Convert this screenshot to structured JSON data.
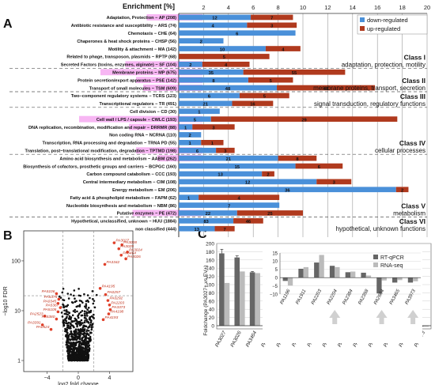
{
  "figure": {
    "panel_labels": [
      "A",
      "B",
      "C"
    ]
  },
  "chart_data": [
    {
      "panel": "A",
      "type": "bar",
      "orientation": "horizontal",
      "stacked": true,
      "title": "",
      "xlabel": "Enrichment [%]",
      "xlim": [
        0,
        20
      ],
      "xticks": [
        2,
        4,
        6,
        8,
        10,
        12,
        14,
        16,
        18,
        20
      ],
      "grid": true,
      "legend": {
        "placement": "top-right",
        "entries": [
          {
            "name": "down-regulated",
            "color": "#4a90d9"
          },
          {
            "name": "up-regulated",
            "color": "#b03a1e"
          }
        ]
      },
      "colors": {
        "down": "#4a90d9",
        "up": "#b03a1e",
        "highlight": "#f7b6f3"
      },
      "categories": [
        {
          "label": "Adaptation, Protection − AP (208)",
          "down": 5.8,
          "up": 3.4,
          "down_n": "12",
          "up_n": "7",
          "hl": 0.9
        },
        {
          "label": "Antibiotic resistance and susceptibility − ARS (74)",
          "down": 5.5,
          "up": 4.0,
          "down_n": "4",
          "up_n": "3",
          "hl": 0
        },
        {
          "label": "Chemotaxis − CHE (64)",
          "down": 9.4,
          "up": 0,
          "down_n": "6",
          "up_n": "",
          "hl": 0
        },
        {
          "label": "Chaperones & heat shock proteins − CHSP (56)",
          "down": 3.6,
          "up": 0,
          "down_n": "2",
          "up_n": "",
          "hl": 0
        },
        {
          "label": "Motility & attachment − MA (142)",
          "down": 7.0,
          "up": 2.8,
          "down_n": "10",
          "up_n": "4",
          "hl": 0
        },
        {
          "label": "Related to phage, transposon, plasmids − RPTP (68)",
          "down": 0,
          "up": 7.3,
          "down_n": "",
          "up_n": "5",
          "hl": 0
        },
        {
          "label": "Secreted Factors (toxins, enzymes, alginate) − SF (104)",
          "down": 1.9,
          "up": 3.8,
          "down_n": "2",
          "up_n": "4",
          "hl": 1.5
        },
        {
          "label": "Membrane proteins − MP (675)",
          "down": 5.2,
          "up": 8.2,
          "down_n": "35",
          "up_n": "55",
          "hl": 2.2
        },
        {
          "label": "Protein secretion/export apparatus − PSE (142)",
          "down": 5.6,
          "up": 3.6,
          "down_n": "8",
          "up_n": "5",
          "hl": 1.2
        },
        {
          "label": "Transport of small molecules − TSM (609)",
          "down": 7.9,
          "up": 7.9,
          "down_n": "48",
          "up_n": "48",
          "hl": 1.0
        },
        {
          "label": "Two−component regulatory systems − TCRS (123)",
          "down": 4.9,
          "up": 4.0,
          "down_n": "6",
          "up_n": "5",
          "hl": 0
        },
        {
          "label": "Transcriptional regulators − TR (491)",
          "down": 4.3,
          "up": 3.3,
          "down_n": "21",
          "up_n": "16",
          "hl": 0
        },
        {
          "label": "Cell division − CD (30)",
          "down": 3.3,
          "up": 0,
          "down_n": "1",
          "up_n": "",
          "hl": 0
        },
        {
          "label": "Cell wall / LPS / capsule − CWLC (193)",
          "down": 2.6,
          "up": 15.0,
          "down_n": "5",
          "up_n": "29",
          "hl": 2.8
        },
        {
          "label": "DNA replication, recombination, modification and repair − DRRMR (88)",
          "down": 1.1,
          "up": 3.4,
          "down_n": "1",
          "up_n": "3",
          "hl": 1.4
        },
        {
          "label": "Non coding RNA − NCRNA (110)",
          "down": 1.8,
          "up": 0,
          "down_n": "2",
          "up_n": "",
          "hl": 0
        },
        {
          "label": "Transcription, RNA processing and degradation − TRNA PD (55)",
          "down": 1.8,
          "up": 1.8,
          "down_n": "1",
          "up_n": "1",
          "hl": 0
        },
        {
          "label": "Translation, post−translational modification, degradation − TPTMD (198)",
          "down": 3.0,
          "up": 1.5,
          "down_n": "6",
          "up_n": "3",
          "hl": 1.2
        },
        {
          "label": "Amino acid biosynthesis and metabolism − AABM (262)",
          "down": 8.0,
          "up": 3.1,
          "down_n": "21",
          "up_n": "8",
          "hl": 0.6
        },
        {
          "label": "Biosynthesis of cofactors, prosthetic groups and carriers − BCPGC (160)",
          "down": 9.4,
          "up": 3.8,
          "down_n": "15",
          "up_n": "6",
          "hl": 0
        },
        {
          "label": "Carbon compound catabolism − CCC (193)",
          "down": 6.7,
          "up": 1.0,
          "down_n": "13",
          "up_n": "2",
          "hl": 0
        },
        {
          "label": "Central intermediary metabolism − CIM (108)",
          "down": 11.1,
          "up": 2.8,
          "down_n": "12",
          "up_n": "3",
          "hl": 0
        },
        {
          "label": "Energy metabolism − EM (206)",
          "down": 17.5,
          "up": 1.0,
          "down_n": "36",
          "up_n": "2",
          "hl": 0
        },
        {
          "label": "Fatty acid & phospholipid metabolism − FAPM (62)",
          "down": 1.6,
          "up": 6.5,
          "down_n": "1",
          "up_n": "4",
          "hl": 0
        },
        {
          "label": "Nucleotide biosynthesis and metabolism − NBM (86)",
          "down": 8.1,
          "up": 0,
          "down_n": "7",
          "up_n": "",
          "hl": 0
        },
        {
          "label": "Putative enzymes − PE (472)",
          "down": 4.7,
          "up": 5.3,
          "down_n": "22",
          "up_n": "25",
          "hl": 1.3
        },
        {
          "label": "Hypothetical, unclassified, unknown − HUU (1884)",
          "down": 4.4,
          "up": 2.4,
          "down_n": "83",
          "up_n": "46",
          "hl": 0
        },
        {
          "label": "non classified (444)",
          "down": 2.9,
          "up": 1.6,
          "down_n": "13",
          "up_n": "7",
          "hl": 0
        }
      ],
      "classes": [
        {
          "name": "Class I",
          "desc": "adaptation, protection, motility"
        },
        {
          "name": "Class II",
          "desc": "membrane proteins, transport, secretion"
        },
        {
          "name": "Class III",
          "desc": "signal transduction, regulatory functions"
        },
        {
          "name": "Class IV",
          "desc": "cellular processes"
        },
        {
          "name": "Class V",
          "desc": "metabolism"
        },
        {
          "name": "Class VI",
          "desc": "hypothetical, unknown functions"
        }
      ]
    },
    {
      "panel": "B",
      "type": "scatter",
      "title": "",
      "xlabel": "log2 fold change",
      "ylabel": "−log10 FDR",
      "xlim": [
        -7,
        7
      ],
      "ylim_log": [
        0.6,
        400
      ],
      "xticks": [
        -4,
        0,
        4
      ],
      "yticks": [
        1,
        10,
        100
      ],
      "thresholds": {
        "x": [
          -2,
          2
        ],
        "y": 1.3
      },
      "colors": {
        "point": "#111111",
        "highlight": "#e0402a"
      },
      "labeled_points": [
        {
          "label": "PA3027",
          "x": 4.6,
          "y": 230
        },
        {
          "label": "PA3028",
          "x": 5.6,
          "y": 210
        },
        {
          "label": "PA3029",
          "x": 5.2,
          "y": 175
        },
        {
          "label": "PA3024",
          "x": 6.3,
          "y": 150
        },
        {
          "label": "PA3464",
          "x": 5.5,
          "y": 130
        },
        {
          "label": "PA3026",
          "x": 6.1,
          "y": 110
        },
        {
          "label": "PA3342",
          "x": 3.4,
          "y": 85
        },
        {
          "label": "PA4195",
          "x": 2.8,
          "y": 28
        },
        {
          "label": "PA0257",
          "x": 3.5,
          "y": 21
        },
        {
          "label": "PA0292",
          "x": 3.8,
          "y": 16
        },
        {
          "label": "PA2203",
          "x": 4.0,
          "y": 13
        },
        {
          "label": "PA3373",
          "x": 4.1,
          "y": 10.5
        },
        {
          "label": "PA4198",
          "x": 3.9,
          "y": 8.6
        },
        {
          "label": "PA4193",
          "x": 3.2,
          "y": 6.6
        },
        {
          "label": "PA5106",
          "x": -2.8,
          "y": 22
        },
        {
          "label": "PA5375",
          "x": -2.5,
          "y": 17
        },
        {
          "label": "PA0345",
          "x": -2.6,
          "y": 14
        },
        {
          "label": "PA5367",
          "x": -2.3,
          "y": 11.5
        },
        {
          "label": "PA5105",
          "x": -2.6,
          "y": 9.5
        },
        {
          "label": "PA2523",
          "x": -4.3,
          "y": 7.8
        },
        {
          "label": "PA5380",
          "x": -2.8,
          "y": 6.8
        },
        {
          "label": "PA3391",
          "x": -4.6,
          "y": 5.2
        },
        {
          "label": "PA0524",
          "x": -3.5,
          "y": 4.2
        }
      ],
      "cloud_half_width_at_1": 2.1
    },
    {
      "panel": "C",
      "type": "bar",
      "title": "",
      "ylabel": "Foldchange (PA3027+ vs EV+)",
      "ylim": [
        0,
        200
      ],
      "yticks": [
        0,
        20,
        40,
        60,
        80,
        100,
        120,
        140,
        160,
        180,
        200
      ],
      "grid": true,
      "colors": {
        "rtqpcr": "#666666",
        "rnaseq": "#bbbbbb",
        "arrow": "#d0d0d0"
      },
      "legend": {
        "placement": "top-right",
        "entries": [
          {
            "name": "RT-qPCR",
            "color": "#666666"
          },
          {
            "name": "RNA-seq",
            "color": "#bbbbbb"
          }
        ]
      },
      "categories": [
        "PA3027",
        "PA3026",
        "PA3464",
        "PA5025",
        "PA3342",
        "PA1196",
        "PA1911",
        "PA2203",
        "PA2204",
        "PA2384",
        "PA2398",
        "PA2664",
        "PA3465",
        "PA3973"
      ],
      "series": [
        {
          "name": "RT-qPCR",
          "values": [
            176,
            166,
            130,
            46,
            48,
            -1.5,
            -1,
            -1.5,
            -1.5,
            -0.5,
            -0.5,
            -2.2,
            -0.7,
            -0.6
          ]
        },
        {
          "name": "RNA-seq",
          "values": [
            104,
            132,
            128,
            45,
            21,
            -1,
            -1,
            -1,
            -1,
            -0.6,
            -0.6,
            -0.8,
            -0.5,
            -0.5
          ]
        }
      ],
      "error_bars_rtqpcr": [
        10,
        4,
        2,
        1,
        5,
        0,
        0,
        0,
        0,
        0,
        0,
        0,
        0,
        0
      ],
      "inset": {
        "ylim": [
          -10,
          15
        ],
        "yticks": [
          -10,
          -5,
          0,
          5,
          10,
          15
        ],
        "categories": [
          "PA1196",
          "PA1911",
          "PA2203",
          "PA2204",
          "PA2384",
          "PA2398",
          "PA2664",
          "PA3465",
          "PA3973"
        ],
        "series": [
          {
            "name": "RT-qPCR",
            "values": [
              -2.0,
              5.4,
              9.2,
              7.2,
              3.3,
              3.0,
              -9.6,
              -3.0,
              -3.0
            ]
          },
          {
            "name": "RNA-seq",
            "values": [
              -4.8,
              6.4,
              13.8,
              6.4,
              3.7,
              1.3,
              -1.7,
              -1.5,
              -2.2
            ]
          }
        ],
        "arrows_under": [
          "PA2204",
          "PA2664",
          "PA3973"
        ]
      }
    }
  ]
}
